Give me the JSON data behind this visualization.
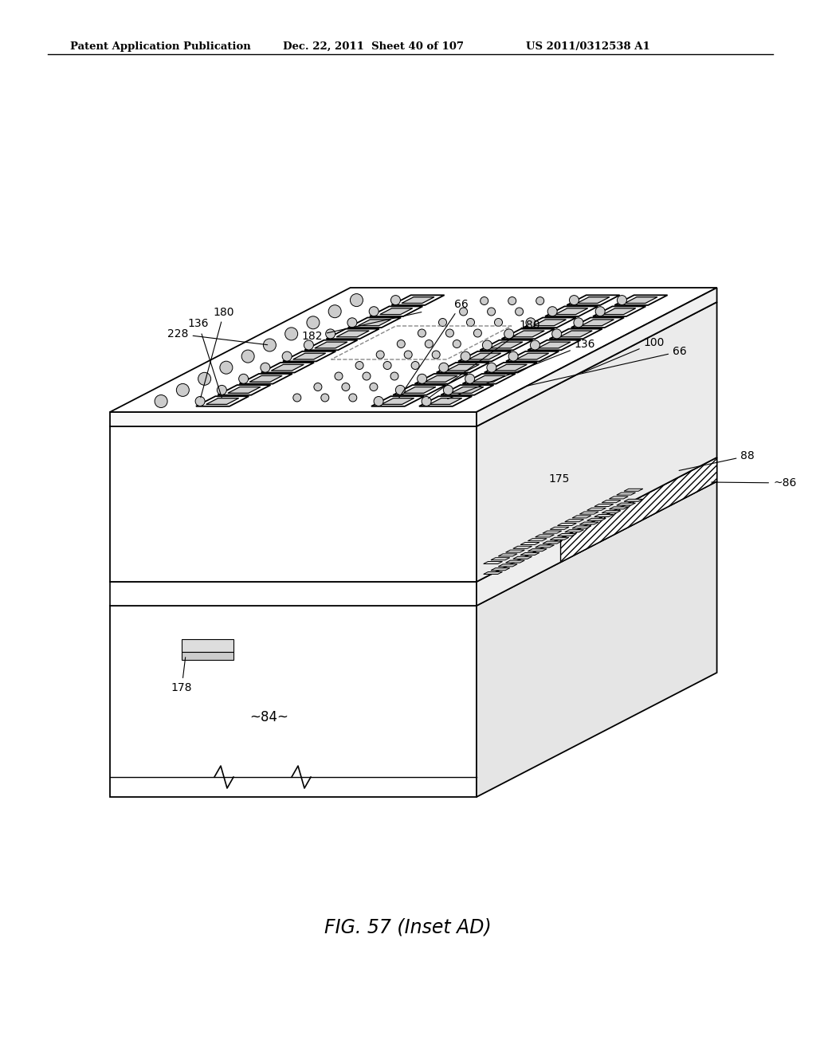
{
  "header_left": "Patent Application Publication",
  "header_mid": "Dec. 22, 2011  Sheet 40 of 107",
  "header_right": "US 2011/0312538 A1",
  "caption": "FIG. 57 (Inset AD)",
  "bg_color": "#ffffff",
  "line_color": "#000000"
}
